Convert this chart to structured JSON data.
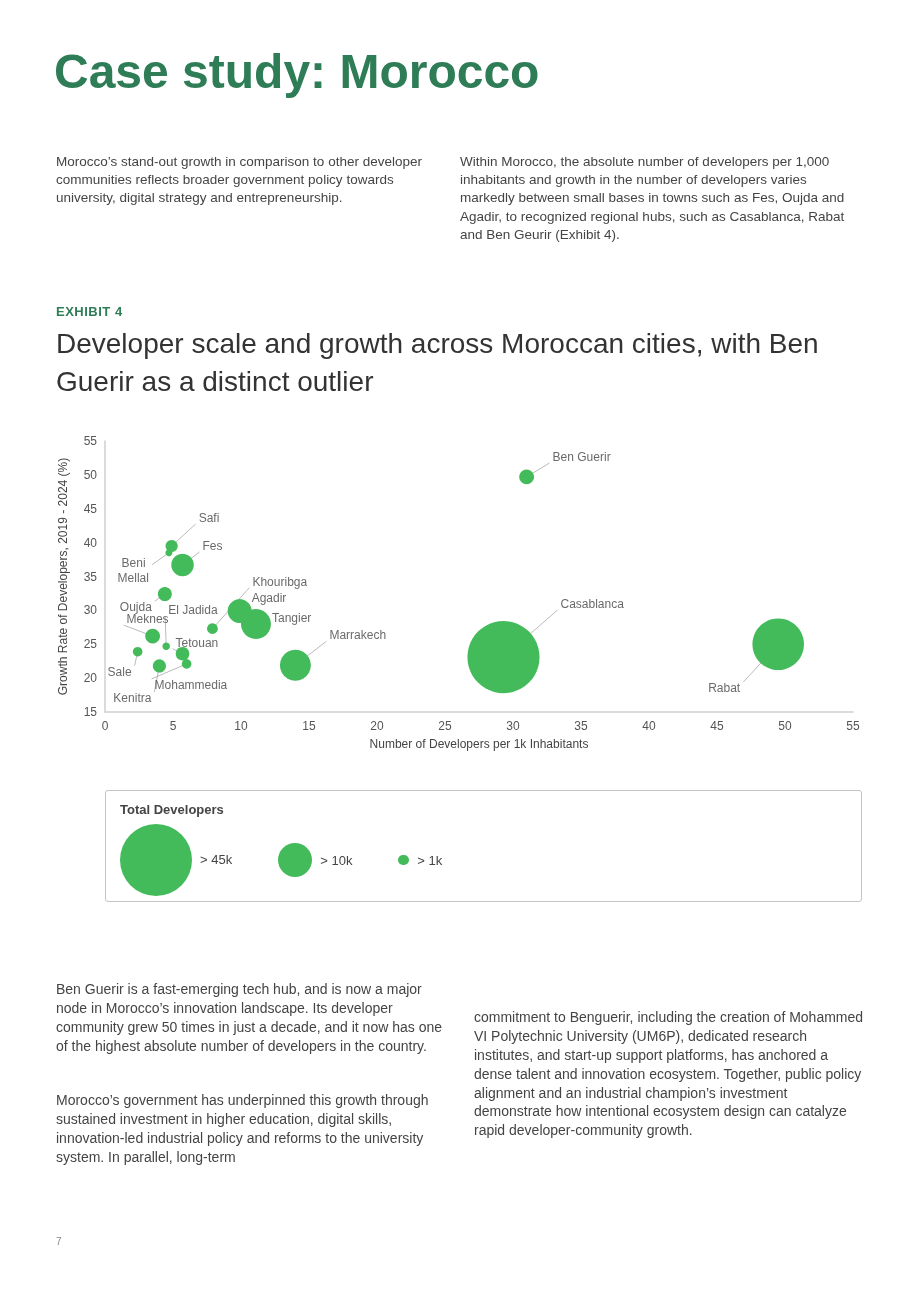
{
  "chart_data": {
    "type": "bubble",
    "title": "Case study: Morocco",
    "subtitle": "Developer scale and growth across Moroccan cities, with Ben Guerir as a distinct outlier",
    "xlabel": "Number of Developers per 1k Inhabitants",
    "ylabel": "Growth Rate of Developers, 2019 - 2024 (%)",
    "legend_title": "Total Developers",
    "series": [
      {
        "color": "#44bb5a",
        "x": [
          31,
          29.3,
          49.5,
          14.0,
          11.1,
          9.9,
          7.9,
          5.7,
          4.9,
          4.7,
          4.4,
          3.5,
          4.5,
          5.7,
          6.0,
          4.0,
          2.4
        ],
        "values": [
          49.7,
          23.1,
          25.0,
          21.9,
          28.0,
          29.9,
          27.3,
          36.7,
          39.5,
          38.5,
          32.4,
          26.2,
          24.7,
          23.6,
          22.1,
          21.8,
          23.9
        ],
        "sizes": [
          1900,
          45000,
          23000,
          8300,
          7800,
          5000,
          1000,
          4400,
          1300,
          430,
          1700,
          1900,
          500,
          1600,
          800,
          1500,
          800
        ]
      }
    ],
    "size_legend": [
      {
        "value": 45000,
        "label": "> 45k"
      },
      {
        "value": 10000,
        "label": "> 10k"
      },
      {
        "value": 1000,
        "label": "> 1k"
      }
    ],
    "xlim": [
      0,
      55
    ],
    "xticks": [
      0,
      5,
      10,
      15,
      20,
      25,
      30,
      35,
      40,
      45,
      50,
      55
    ],
    "ylim": [
      15,
      55
    ],
    "yticks": [
      15,
      20,
      25,
      30,
      35,
      40,
      45,
      50,
      55
    ],
    "grid": false,
    "annotations": [
      "EXHIBIT 4",
      "Morocco’s stand-out growth in comparison to other developer communities reflects broader government policy towards university, digital strategy and entrepreneurship.",
      "Within Morocco, the absolute number of developers per 1,000 inhabitants and growth in the number of developers varies markedly between small bases in towns such as Fes, Oujda and Agadir, to recognized regional hubs, such as Casablanca, Rabat and Ben Geurir (Exhibit 4).",
      "Ben Guerir is a fast-emerging tech hub, and is now a major node in Morocco’s innovation landscape. Its developer community grew 50 times in just a decade, and it now has one of the highest absolute number of developers in the country.",
      "Morocco’s government has underpinned this growth through sustained investment in higher education, digital skills, innovation-led industrial policy and reforms to the university system. In parallel, long-term",
      "commitment to Benguerir, including the creation of Mohammed VI Polytechnic University (UM6P), dedicated research institutes, and start-up support platforms, has anchored a dense talent and innovation ecosystem. Together, public policy alignment and an industrial champion’s investment demonstrate how intentional ecosystem design can catalyze rapid developer-community growth.",
      "7",
      {
        "text": "Ben Guerir",
        "x": 31,
        "y": 49.7
      },
      {
        "text": "Casablanca",
        "x": 29.3,
        "y": 23.1
      },
      {
        "text": "Rabat",
        "x": 49.5,
        "y": 25.0
      },
      {
        "text": "Marrakech",
        "x": 14.0,
        "y": 21.9
      },
      {
        "text": "Tangier",
        "x": 11.1,
        "y": 28.0
      },
      {
        "text": "Agadir",
        "x": 9.9,
        "y": 29.9
      },
      {
        "text": "Khouribga",
        "x": 7.9,
        "y": 27.3
      },
      {
        "text": "Fes",
        "x": 5.7,
        "y": 36.7
      },
      {
        "text": "Safi",
        "x": 4.9,
        "y": 39.5
      },
      {
        "text": "Beni Mellal",
        "x": 4.7,
        "y": 38.5
      },
      {
        "text": "Oujda",
        "x": 4.4,
        "y": 32.4
      },
      {
        "text": "Meknes",
        "x": 3.5,
        "y": 26.2
      },
      {
        "text": "El Jadida",
        "x": 4.5,
        "y": 24.7
      },
      {
        "text": "Tetouan",
        "x": 5.7,
        "y": 23.6
      },
      {
        "text": "Mohammedia",
        "x": 6.0,
        "y": 22.1
      },
      {
        "text": "Kenitra",
        "x": 4.0,
        "y": 21.8
      },
      {
        "text": "Sale",
        "x": 2.4,
        "y": 23.9
      }
    ]
  }
}
